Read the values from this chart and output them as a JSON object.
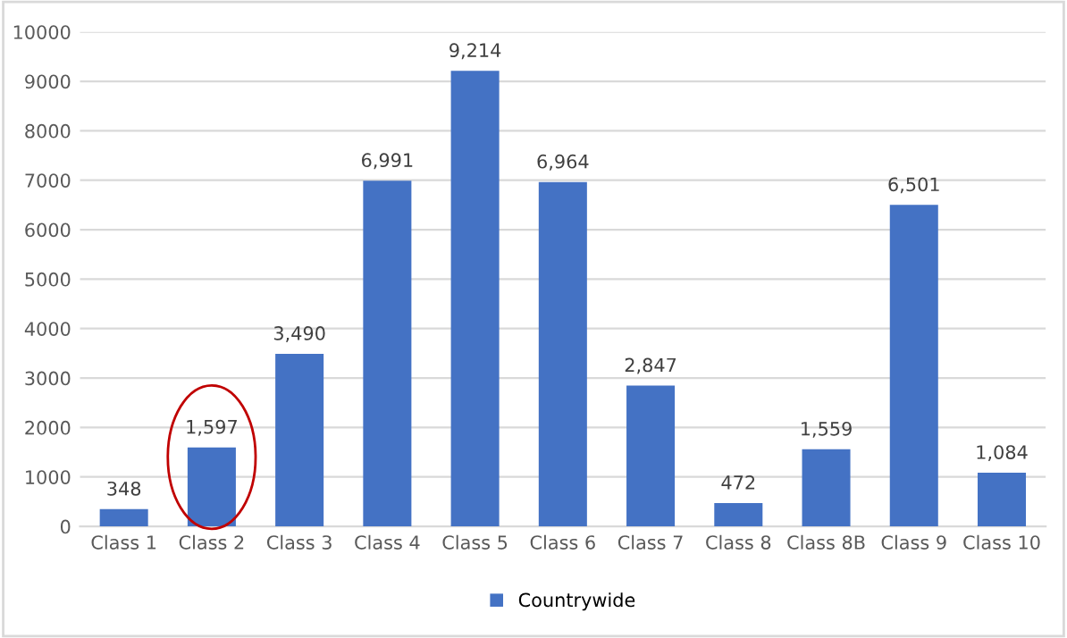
{
  "chart_data": {
    "type": "bar",
    "categories": [
      "Class 1",
      "Class 2",
      "Class 3",
      "Class 4",
      "Class 5",
      "Class 6",
      "Class 7",
      "Class 8",
      "Class 8B",
      "Class 9",
      "Class 10"
    ],
    "series": [
      {
        "name": "Countrywide",
        "color": "#4472c4",
        "values": [
          348,
          1597,
          3490,
          6991,
          9214,
          6964,
          2847,
          472,
          1559,
          6501,
          1084
        ],
        "value_labels": [
          "348",
          "1,597",
          "3,490",
          "6,991",
          "9,214",
          "6,964",
          "2,847",
          "472",
          "1,559",
          "6,501",
          "1,084"
        ]
      }
    ],
    "ylim": [
      0,
      10000
    ],
    "yticks": [
      0,
      1000,
      2000,
      3000,
      4000,
      5000,
      6000,
      7000,
      8000,
      9000,
      10000
    ],
    "grid": "y",
    "legend": "bottom"
  }
}
